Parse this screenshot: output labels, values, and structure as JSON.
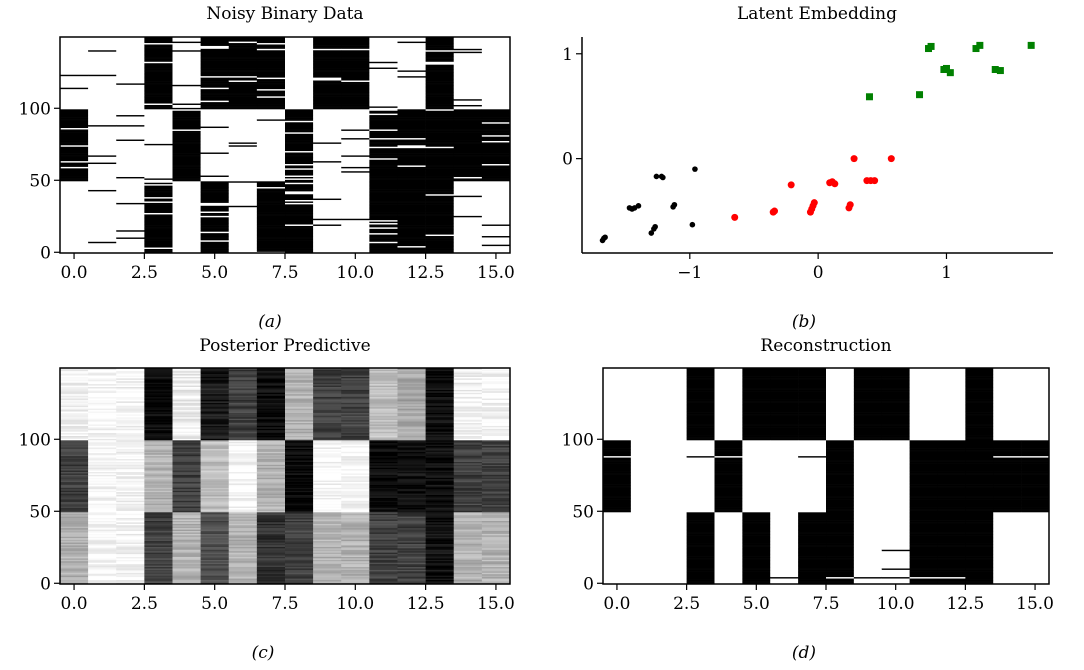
{
  "chart_data": [
    {
      "type": "heatmap",
      "panel": "a",
      "title": "Noisy Binary Data",
      "caption": "(a)",
      "columns": 16,
      "rows": 150,
      "row_blocks": [
        [
          0,
          49
        ],
        [
          50,
          99
        ],
        [
          100,
          149
        ]
      ],
      "block_values": [
        [
          0,
          1,
          0
        ],
        [
          0,
          0,
          0
        ],
        [
          0,
          0,
          0
        ],
        [
          1,
          0,
          1
        ],
        [
          0,
          1,
          0
        ],
        [
          1,
          0,
          1
        ],
        [
          0,
          0,
          1
        ],
        [
          1,
          0,
          1
        ],
        [
          1,
          1,
          0
        ],
        [
          0,
          0,
          1
        ],
        [
          0,
          0,
          1
        ],
        [
          1,
          1,
          0
        ],
        [
          1,
          1,
          0
        ],
        [
          1,
          1,
          1
        ],
        [
          0,
          1,
          0
        ],
        [
          0,
          1,
          0
        ]
      ],
      "value_encoding": "1 = black, 0 = white; block_values per column ordered [rows 0-49, rows 50-99, rows 100-149]",
      "noise": "random row flips",
      "xticks": [
        "0.0",
        "2.5",
        "5.0",
        "7.5",
        "10.0",
        "12.5",
        "15.0"
      ],
      "xtick_values": [
        0,
        2.5,
        5,
        7.5,
        10,
        12.5,
        15
      ],
      "yticks": [
        "0",
        "50",
        "100"
      ],
      "ytick_values": [
        0,
        50,
        100
      ],
      "xlim": [
        -0.5,
        15.5
      ],
      "ylim": [
        -0.5,
        149.5
      ]
    },
    {
      "type": "scatter",
      "panel": "b",
      "title": "Latent Embedding",
      "caption": "(b)",
      "xticks": [
        "−1",
        "0",
        "1"
      ],
      "xtick_values": [
        -1,
        0,
        1
      ],
      "yticks": [
        "0",
        "1"
      ],
      "ytick_values": [
        0,
        1
      ],
      "xlim": [
        -1.84,
        1.83
      ],
      "ylim": [
        -0.9,
        1.16
      ],
      "spines": [
        "left",
        "bottom"
      ],
      "series": [
        {
          "color": "#000000",
          "marker": "circle",
          "points": [
            [
              -1.68,
              -0.78
            ],
            [
              -1.67,
              -0.76
            ],
            [
              -1.66,
              -0.75
            ],
            [
              -1.47,
              -0.47
            ],
            [
              -1.45,
              -0.48
            ],
            [
              -1.43,
              -0.47
            ],
            [
              -1.4,
              -0.45
            ],
            [
              -1.3,
              -0.71
            ],
            [
              -1.28,
              -0.67
            ],
            [
              -1.27,
              -0.65
            ],
            [
              -1.26,
              -0.17
            ],
            [
              -1.22,
              -0.17
            ],
            [
              -1.21,
              -0.18
            ],
            [
              -1.13,
              -0.46
            ],
            [
              -1.12,
              -0.44
            ],
            [
              -0.98,
              -0.63
            ],
            [
              -0.96,
              -0.1
            ]
          ]
        },
        {
          "color": "#ff0000",
          "marker": "circle",
          "points": [
            [
              -0.65,
              -0.56
            ],
            [
              -0.35,
              -0.51
            ],
            [
              -0.34,
              -0.5
            ],
            [
              -0.21,
              -0.25
            ],
            [
              -0.06,
              -0.51
            ],
            [
              -0.05,
              -0.48
            ],
            [
              -0.04,
              -0.45
            ],
            [
              -0.03,
              -0.42
            ],
            [
              0.09,
              -0.23
            ],
            [
              0.11,
              -0.22
            ],
            [
              0.13,
              -0.24
            ],
            [
              0.24,
              -0.47
            ],
            [
              0.25,
              -0.44
            ],
            [
              0.28,
              0
            ],
            [
              0.38,
              -0.21
            ],
            [
              0.41,
              -0.21
            ],
            [
              0.44,
              -0.21
            ],
            [
              0.57,
              0
            ]
          ]
        },
        {
          "color": "#008000",
          "marker": "square",
          "points": [
            [
              0.4,
              0.59
            ],
            [
              0.79,
              0.61
            ],
            [
              0.86,
              1.05
            ],
            [
              0.88,
              1.07
            ],
            [
              0.98,
              0.85
            ],
            [
              1.0,
              0.86
            ],
            [
              1.03,
              0.82
            ],
            [
              1.23,
              1.05
            ],
            [
              1.26,
              1.08
            ],
            [
              1.38,
              0.85
            ],
            [
              1.42,
              0.84
            ],
            [
              1.66,
              1.08
            ]
          ]
        }
      ]
    },
    {
      "type": "heatmap",
      "panel": "c",
      "title": "Posterior Predictive",
      "caption": "(c)",
      "columns": 16,
      "rows": 150,
      "row_blocks": [
        [
          0,
          49
        ],
        [
          50,
          99
        ],
        [
          100,
          149
        ]
      ],
      "block_values": [
        [
          0.3,
          0.75,
          0.05
        ],
        [
          0.02,
          0.02,
          0.02
        ],
        [
          0.03,
          0.03,
          0.04
        ],
        [
          0.75,
          0.3,
          0.97
        ],
        [
          0.3,
          0.75,
          0.07
        ],
        [
          0.7,
          0.25,
          0.9
        ],
        [
          0.3,
          0.02,
          0.75
        ],
        [
          0.8,
          0.3,
          0.95
        ],
        [
          0.75,
          0.98,
          0.3
        ],
        [
          0.3,
          0.03,
          0.75
        ],
        [
          0.3,
          0.03,
          0.75
        ],
        [
          0.75,
          0.97,
          0.25
        ],
        [
          0.75,
          0.95,
          0.35
        ],
        [
          0.95,
          0.95,
          0.95
        ],
        [
          0.3,
          0.75,
          0.05
        ],
        [
          0.3,
          0.75,
          0.03
        ]
      ],
      "value_encoding": "probability of 1, shown as darkness (grayscale)",
      "xticks": [
        "0.0",
        "2.5",
        "5.0",
        "7.5",
        "10.0",
        "12.5",
        "15.0"
      ],
      "xtick_values": [
        0,
        2.5,
        5,
        7.5,
        10,
        12.5,
        15
      ],
      "yticks": [
        "0",
        "50",
        "100"
      ],
      "ytick_values": [
        0,
        50,
        100
      ],
      "xlim": [
        -0.5,
        15.5
      ],
      "ylim": [
        -0.5,
        149.5
      ]
    },
    {
      "type": "heatmap",
      "panel": "d",
      "title": "Reconstruction",
      "caption": "(d)",
      "columns": 16,
      "rows": 150,
      "row_blocks": [
        [
          0,
          49
        ],
        [
          50,
          99
        ],
        [
          100,
          149
        ]
      ],
      "block_values": [
        [
          0,
          1,
          0
        ],
        [
          0,
          0,
          0
        ],
        [
          0,
          0,
          0
        ],
        [
          1,
          0,
          1
        ],
        [
          0,
          1,
          0
        ],
        [
          1,
          0,
          1
        ],
        [
          0,
          0,
          1
        ],
        [
          1,
          0,
          1
        ],
        [
          1,
          1,
          0
        ],
        [
          0,
          0,
          1
        ],
        [
          0,
          0,
          1
        ],
        [
          1,
          1,
          0
        ],
        [
          1,
          1,
          0
        ],
        [
          1,
          1,
          1
        ],
        [
          0,
          1,
          0
        ],
        [
          0,
          1,
          0
        ]
      ],
      "flipped_cells": [
        [
          0,
          88
        ],
        [
          3,
          88
        ],
        [
          4,
          88
        ],
        [
          7,
          88
        ],
        [
          14,
          88
        ],
        [
          15,
          88
        ],
        [
          6,
          4
        ],
        [
          8,
          4
        ],
        [
          9,
          4
        ],
        [
          10,
          4
        ],
        [
          11,
          4
        ],
        [
          12,
          4
        ],
        [
          10,
          10
        ],
        [
          10,
          23
        ]
      ],
      "value_encoding": "1 = black, 0 = white; flipped_cells are [column,row]",
      "xticks": [
        "0.0",
        "2.5",
        "5.0",
        "7.5",
        "10.0",
        "12.5",
        "15.0"
      ],
      "xtick_values": [
        0,
        2.5,
        5,
        7.5,
        10,
        12.5,
        15
      ],
      "yticks": [
        "0",
        "50",
        "100"
      ],
      "ytick_values": [
        0,
        50,
        100
      ],
      "xlim": [
        -0.5,
        15.5
      ],
      "ylim": [
        -0.5,
        149.5
      ]
    }
  ]
}
